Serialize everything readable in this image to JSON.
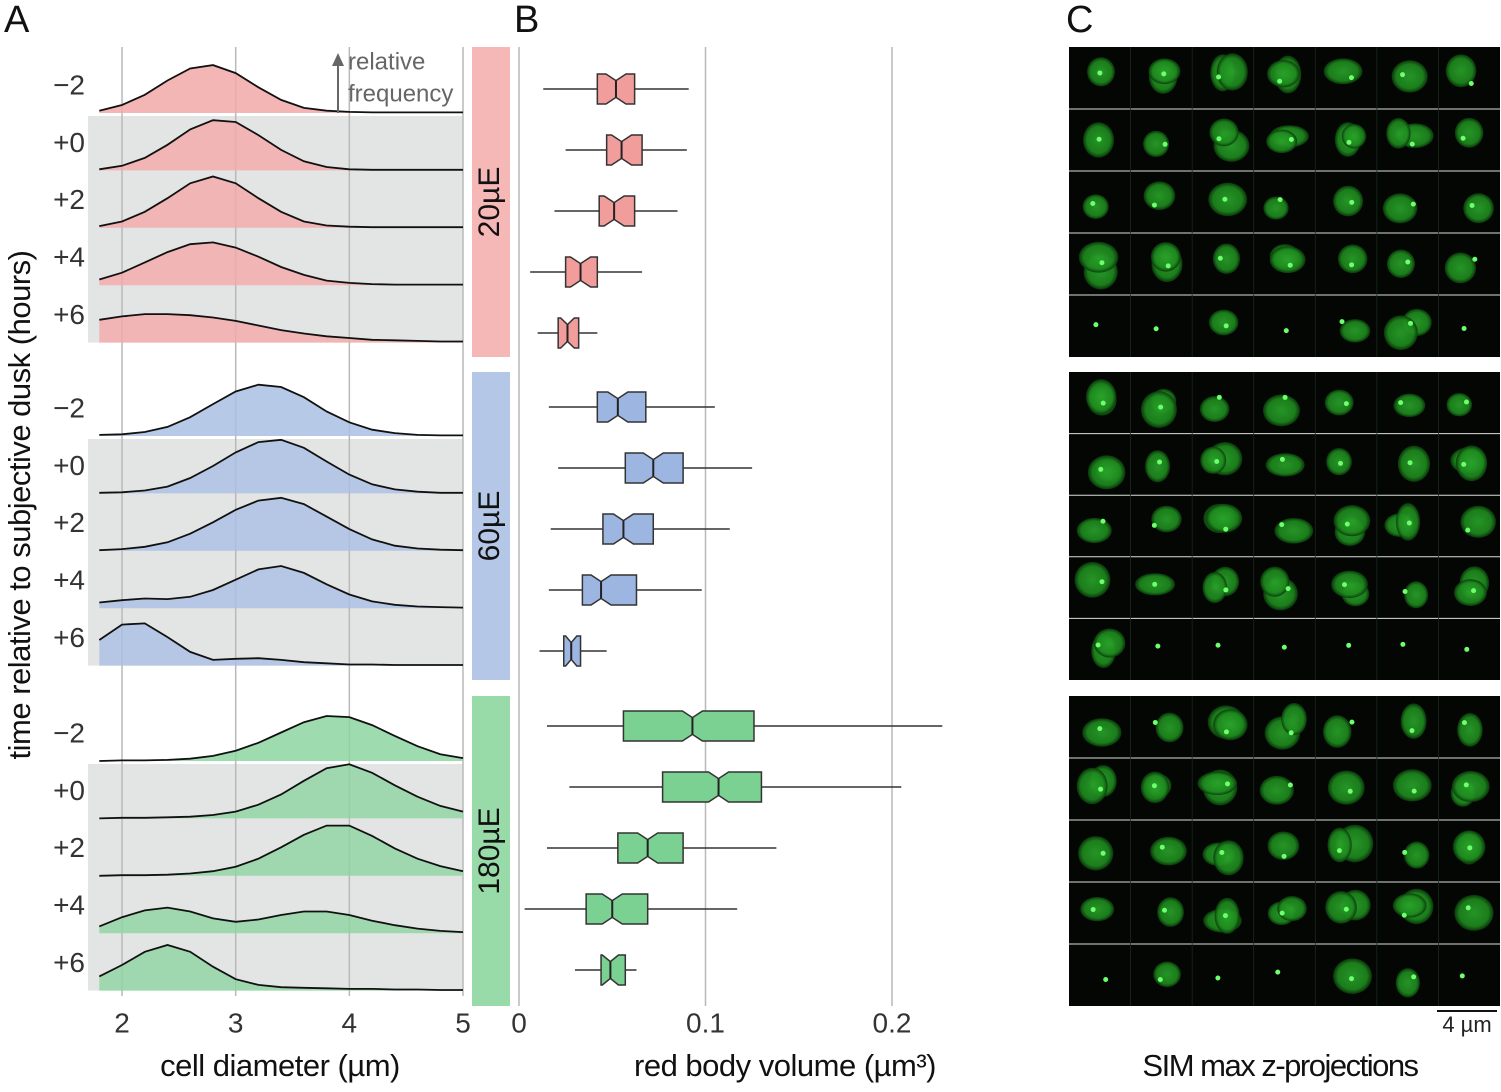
{
  "chart_data": [
    {
      "type": "ridgeline",
      "panel": "A",
      "ylabel": "time relative to subjective dusk (hours)",
      "xlabel": "cell diameter (µm)",
      "annotation": [
        "relative",
        "frequency"
      ],
      "x": [
        1.8,
        2.0,
        2.2,
        2.4,
        2.6,
        2.8,
        3.0,
        3.2,
        3.4,
        3.6,
        3.8,
        4.0,
        4.2,
        4.4,
        4.6,
        4.8,
        5.0
      ],
      "xlim": [
        1.8,
        5
      ],
      "xticks": [
        2,
        3,
        4,
        5
      ],
      "grid": true,
      "row_labels": [
        "−2",
        "+0",
        "+2",
        "+4",
        "+6"
      ],
      "groups": [
        {
          "name": "20µE",
          "color": "#f2a9a8",
          "strip_color": "#f6b8b7",
          "rows": [
            [
              0.04,
              0.14,
              0.32,
              0.57,
              0.78,
              0.84,
              0.7,
              0.45,
              0.23,
              0.09,
              0.04,
              0.02,
              0.01,
              0.01,
              0.01,
              0.01,
              0.01
            ],
            [
              0.02,
              0.08,
              0.22,
              0.45,
              0.72,
              0.88,
              0.85,
              0.62,
              0.36,
              0.16,
              0.06,
              0.02,
              0.01,
              0.01,
              0.01,
              0.01,
              0.01
            ],
            [
              0.03,
              0.11,
              0.28,
              0.52,
              0.78,
              0.9,
              0.78,
              0.52,
              0.28,
              0.11,
              0.04,
              0.02,
              0.01,
              0.01,
              0.01,
              0.01,
              0.01
            ],
            [
              0.1,
              0.22,
              0.4,
              0.58,
              0.72,
              0.75,
              0.66,
              0.5,
              0.32,
              0.18,
              0.08,
              0.04,
              0.02,
              0.01,
              0.01,
              0.01,
              0.01
            ],
            [
              0.4,
              0.46,
              0.5,
              0.5,
              0.48,
              0.44,
              0.38,
              0.3,
              0.22,
              0.16,
              0.11,
              0.08,
              0.05,
              0.04,
              0.03,
              0.02,
              0.02
            ]
          ]
        },
        {
          "name": "60µE",
          "color": "#a9bfe3",
          "strip_color": "#b5c7e7",
          "rows": [
            [
              0.02,
              0.03,
              0.07,
              0.16,
              0.33,
              0.56,
              0.78,
              0.9,
              0.86,
              0.68,
              0.43,
              0.24,
              0.11,
              0.05,
              0.02,
              0.01,
              0.01
            ],
            [
              0.01,
              0.02,
              0.05,
              0.12,
              0.27,
              0.48,
              0.72,
              0.9,
              0.94,
              0.8,
              0.56,
              0.33,
              0.16,
              0.07,
              0.03,
              0.01,
              0.01
            ],
            [
              0.01,
              0.03,
              0.07,
              0.15,
              0.3,
              0.5,
              0.72,
              0.88,
              0.93,
              0.82,
              0.6,
              0.38,
              0.2,
              0.09,
              0.04,
              0.02,
              0.01
            ],
            [
              0.1,
              0.14,
              0.17,
              0.16,
              0.2,
              0.32,
              0.5,
              0.68,
              0.74,
              0.62,
              0.42,
              0.24,
              0.12,
              0.06,
              0.03,
              0.02,
              0.01
            ],
            [
              0.45,
              0.72,
              0.74,
              0.5,
              0.24,
              0.1,
              0.12,
              0.13,
              0.1,
              0.06,
              0.04,
              0.02,
              0.02,
              0.01,
              0.01,
              0.01,
              0.01
            ]
          ]
        },
        {
          "name": "180µE",
          "color": "#8dd5a0",
          "strip_color": "#99dba8",
          "rows": [
            [
              0,
              0.01,
              0.01,
              0.02,
              0.04,
              0.09,
              0.18,
              0.32,
              0.5,
              0.68,
              0.79,
              0.77,
              0.63,
              0.44,
              0.26,
              0.12,
              0.05
            ],
            [
              0,
              0.01,
              0.01,
              0.02,
              0.03,
              0.06,
              0.12,
              0.24,
              0.42,
              0.66,
              0.88,
              0.95,
              0.8,
              0.58,
              0.38,
              0.22,
              0.12
            ],
            [
              0,
              0.01,
              0.01,
              0.02,
              0.04,
              0.08,
              0.16,
              0.3,
              0.5,
              0.72,
              0.88,
              0.88,
              0.7,
              0.48,
              0.3,
              0.17,
              0.08
            ],
            [
              0.12,
              0.28,
              0.4,
              0.45,
              0.38,
              0.26,
              0.2,
              0.24,
              0.32,
              0.38,
              0.38,
              0.32,
              0.22,
              0.14,
              0.08,
              0.04,
              0.02
            ],
            [
              0.25,
              0.45,
              0.68,
              0.8,
              0.68,
              0.42,
              0.2,
              0.1,
              0.06,
              0.05,
              0.04,
              0.03,
              0.03,
              0.02,
              0.02,
              0.01,
              0.01
            ]
          ]
        }
      ]
    },
    {
      "type": "boxplot",
      "panel": "B",
      "xlabel": "red body volume (µm³)",
      "xlim": [
        0,
        0.285
      ],
      "xticks": [
        0,
        0.1,
        0.2
      ],
      "grid": true,
      "colors": [
        "#f19d9c",
        "#9db6e1",
        "#7bd191"
      ],
      "groups": [
        {
          "boxes": [
            [
              0.013,
              0.042,
              0.052,
              0.062,
              0.091
            ],
            [
              0.025,
              0.047,
              0.055,
              0.066,
              0.09
            ],
            [
              0.019,
              0.043,
              0.051,
              0.062,
              0.085
            ],
            [
              0.006,
              0.025,
              0.033,
              0.042,
              0.066
            ],
            [
              0.01,
              0.021,
              0.026,
              0.032,
              0.042
            ]
          ]
        },
        {
          "boxes": [
            [
              0.016,
              0.042,
              0.053,
              0.068,
              0.105
            ],
            [
              0.021,
              0.057,
              0.072,
              0.088,
              0.125
            ],
            [
              0.017,
              0.045,
              0.056,
              0.072,
              0.113
            ],
            [
              0.016,
              0.034,
              0.044,
              0.063,
              0.098
            ],
            [
              0.011,
              0.024,
              0.028,
              0.033,
              0.047
            ]
          ]
        },
        {
          "boxes": [
            [
              0.015,
              0.056,
              0.093,
              0.126,
              0.227
            ],
            [
              0.027,
              0.077,
              0.107,
              0.13,
              0.205
            ],
            [
              0.015,
              0.053,
              0.069,
              0.088,
              0.138
            ],
            [
              0.003,
              0.036,
              0.05,
              0.069,
              0.117
            ],
            [
              0.03,
              0.044,
              0.049,
              0.057,
              0.063
            ]
          ]
        }
      ]
    },
    {
      "type": "image_grid",
      "panel": "C",
      "xlabel": "SIM max z-projections",
      "scale_bar": "4 µm"
    }
  ]
}
